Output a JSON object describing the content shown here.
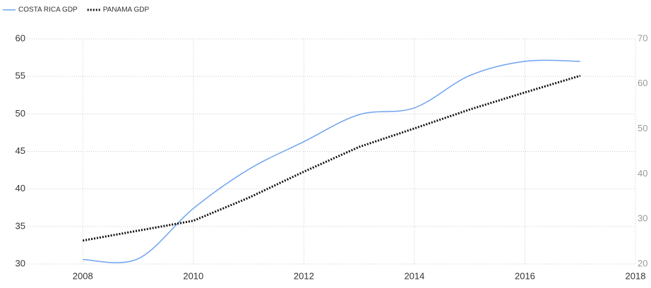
{
  "chart_data": {
    "type": "line",
    "x": [
      2008,
      2009,
      2010,
      2011,
      2012,
      2013,
      2014,
      2015,
      2016,
      2017
    ],
    "series": [
      {
        "name": "COSTA RICA GDP",
        "color": "#6fa3ef",
        "style": "solid",
        "values": [
          30.6,
          30.7,
          37.4,
          42.6,
          46.3,
          49.9,
          50.8,
          55.1,
          57.0,
          57.0
        ]
      },
      {
        "name": "PANAMA GDP",
        "color": "#111111",
        "style": "dotted",
        "axis": "y2",
        "values": [
          25.2,
          27.4,
          29.6,
          34.7,
          40.5,
          46.0,
          50.1,
          54.3,
          58.1,
          61.8
        ]
      }
    ],
    "xlim": [
      2007,
      2018
    ],
    "xticks": [
      2008,
      2010,
      2012,
      2014,
      2016,
      2018
    ],
    "ylim": [
      30,
      60
    ],
    "yticks": [
      30,
      35,
      40,
      45,
      50,
      55,
      60
    ],
    "y2lim": [
      20,
      70
    ],
    "y2ticks": [
      20,
      30,
      40,
      50,
      60,
      70
    ],
    "grid": true,
    "legend": "top-left"
  }
}
